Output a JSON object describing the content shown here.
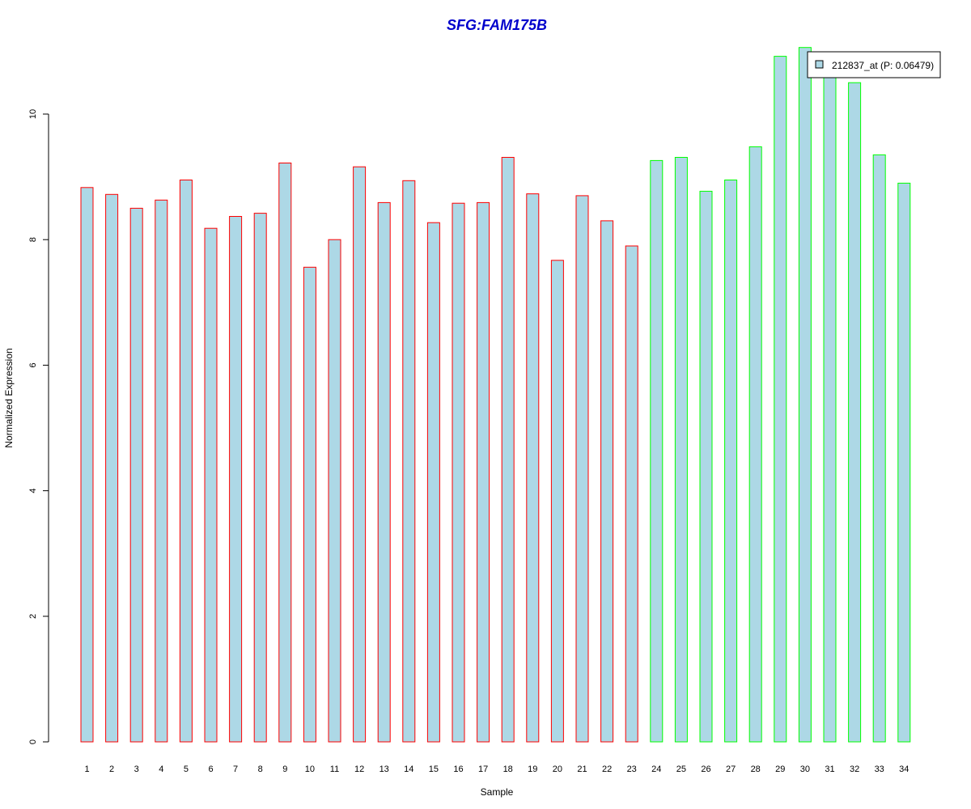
{
  "chart_data": {
    "type": "bar",
    "title": "SFG:FAM175B",
    "xlabel": "Sample",
    "ylabel": "Normalized Expression",
    "ylim": [
      0,
      11.2
    ],
    "y_ticks": [
      "0",
      "2",
      "4",
      "6",
      "8",
      "10"
    ],
    "categories": [
      "1",
      "2",
      "3",
      "4",
      "5",
      "6",
      "7",
      "8",
      "9",
      "10",
      "11",
      "12",
      "13",
      "14",
      "15",
      "16",
      "17",
      "18",
      "19",
      "20",
      "21",
      "22",
      "23",
      "24",
      "25",
      "26",
      "27",
      "28",
      "29",
      "30",
      "31",
      "32",
      "33",
      "34"
    ],
    "values": [
      8.83,
      8.72,
      8.5,
      8.63,
      8.95,
      8.18,
      8.37,
      8.42,
      9.22,
      7.56,
      8.0,
      9.16,
      8.59,
      8.94,
      8.27,
      8.58,
      8.59,
      9.31,
      8.73,
      7.67,
      8.7,
      8.3,
      7.9,
      9.26,
      9.31,
      8.77,
      8.95,
      9.48,
      10.92,
      11.06,
      10.7,
      10.5,
      9.35,
      8.9
    ],
    "group_border_colors": [
      "#ff0000",
      "#ff0000",
      "#ff0000",
      "#ff0000",
      "#ff0000",
      "#ff0000",
      "#ff0000",
      "#ff0000",
      "#ff0000",
      "#ff0000",
      "#ff0000",
      "#ff0000",
      "#ff0000",
      "#ff0000",
      "#ff0000",
      "#ff0000",
      "#ff0000",
      "#ff0000",
      "#ff0000",
      "#ff0000",
      "#ff0000",
      "#ff0000",
      "#ff0000",
      "#00ff00",
      "#00ff00",
      "#00ff00",
      "#00ff00",
      "#00ff00",
      "#00ff00",
      "#00ff00",
      "#00ff00",
      "#00ff00",
      "#00ff00",
      "#00ff00"
    ],
    "bar_fill": "#add8e6",
    "title_color": "#0000cc",
    "grid": false,
    "legend": {
      "placement": "top-right",
      "entries": [
        {
          "label": "212837_at (P: 0.06479)",
          "color": "#add8e6"
        }
      ]
    }
  }
}
